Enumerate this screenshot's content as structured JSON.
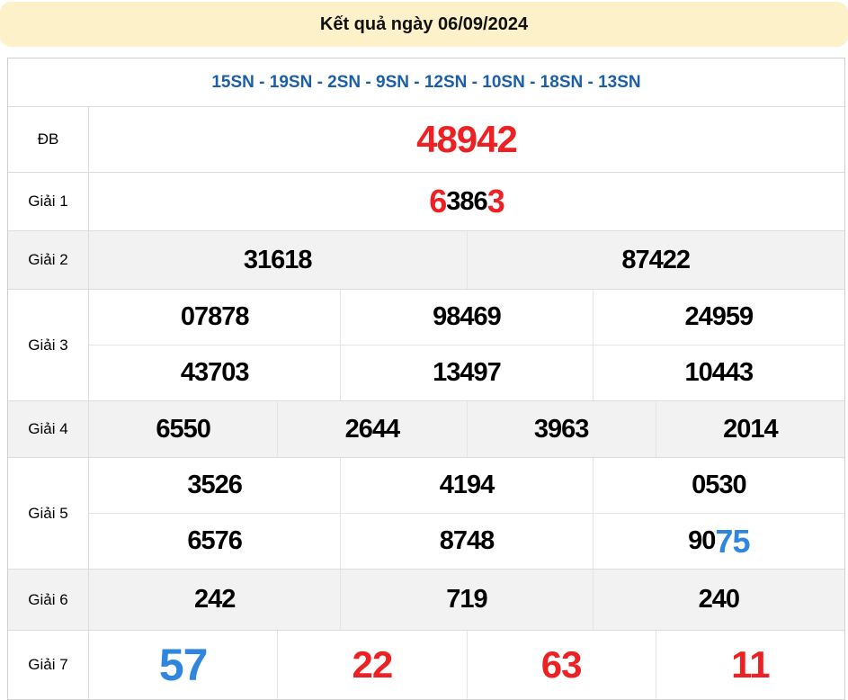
{
  "header": {
    "title": "Kết quả ngày 06/09/2024"
  },
  "subheader": {
    "codes": "15SN - 19SN - 2SN - 9SN - 12SN - 10SN - 18SN - 13SN"
  },
  "colors": {
    "banner_bg": "#fdf1c9",
    "codes_blue": "#1b5fa8",
    "accent_red": "#ed2024",
    "accent_blue": "#2e86de",
    "alt_row_bg": "#f2f2f2",
    "border": "#dcdcdc"
  },
  "prizes": {
    "db": {
      "label": "ĐB",
      "value": "48942"
    },
    "g1": {
      "label": "Giải 1",
      "parts": [
        "6",
        "386",
        "3"
      ]
    },
    "g2": {
      "label": "Giải 2",
      "rows": [
        [
          "31618",
          "87422"
        ]
      ]
    },
    "g3": {
      "label": "Giải 3",
      "rows": [
        [
          "07878",
          "98469",
          "24959"
        ],
        [
          "43703",
          "13497",
          "10443"
        ]
      ]
    },
    "g4": {
      "label": "Giải 4",
      "rows": [
        [
          "6550",
          "2644",
          "3963",
          "2014"
        ]
      ]
    },
    "g5": {
      "label": "Giải 5",
      "rows": [
        [
          "3526",
          "4194",
          "0530"
        ],
        [
          "6576",
          "8748"
        ]
      ],
      "last_parts": [
        "90",
        "75"
      ]
    },
    "g6": {
      "label": "Giải 6",
      "rows": [
        [
          "242",
          "719",
          "240"
        ]
      ]
    },
    "g7": {
      "label": "Giải 7",
      "rows": [
        [
          "57",
          "22",
          "63",
          "11"
        ]
      ]
    }
  }
}
